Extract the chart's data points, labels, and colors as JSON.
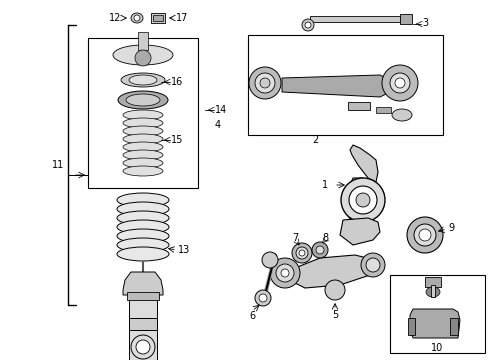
{
  "fig_width": 4.89,
  "fig_height": 3.6,
  "dpi": 100,
  "lc": "#000000",
  "fc_light": "#e8e8e8",
  "fc_mid": "#cccccc",
  "fc_dark": "#aaaaaa",
  "fc_white": "#ffffff",
  "bg": "#ffffff",
  "label_fs": 7,
  "lw_thin": 0.5,
  "lw_med": 0.8,
  "lw_thick": 1.2
}
